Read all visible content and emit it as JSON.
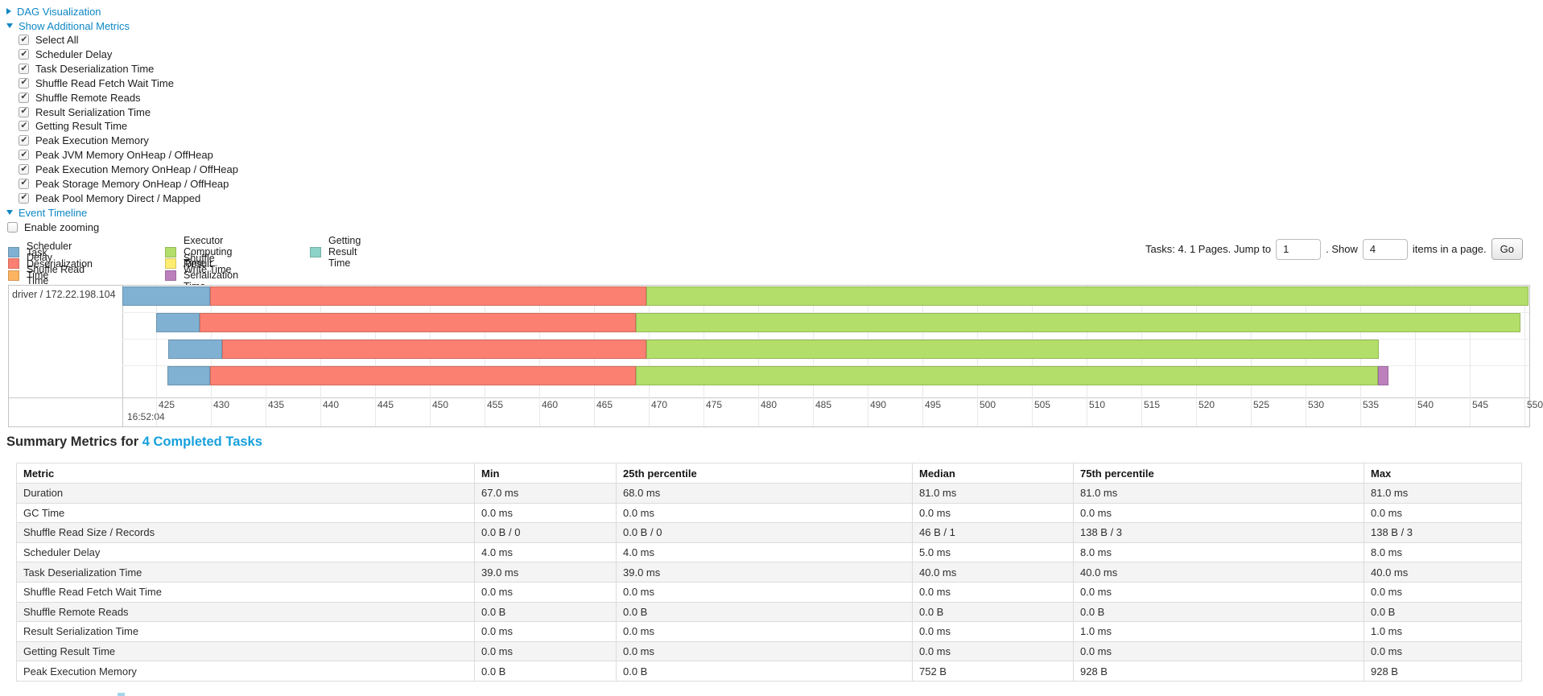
{
  "colors": {
    "link": "#0d87c4",
    "heading_link": "#16a0dc",
    "chart_border": "#c4c4c4",
    "grid_line": "#e9e9e9",
    "table_border": "#dcdcdc",
    "table_stripe": "#f4f4f4"
  },
  "toggles": {
    "dag": {
      "label": "DAG Visualization",
      "state": "collapsed"
    },
    "metrics": {
      "label": "Show Additional Metrics",
      "state": "expanded"
    },
    "timeline": {
      "label": "Event Timeline",
      "state": "expanded"
    }
  },
  "metric_checkboxes": [
    {
      "label": "Select All",
      "checked": true
    },
    {
      "label": "Scheduler Delay",
      "checked": true
    },
    {
      "label": "Task Deserialization Time",
      "checked": true
    },
    {
      "label": "Shuffle Read Fetch Wait Time",
      "checked": true
    },
    {
      "label": "Shuffle Remote Reads",
      "checked": true
    },
    {
      "label": "Result Serialization Time",
      "checked": true
    },
    {
      "label": "Getting Result Time",
      "checked": true
    },
    {
      "label": "Peak Execution Memory",
      "checked": true
    },
    {
      "label": "Peak JVM Memory OnHeap / OffHeap",
      "checked": true
    },
    {
      "label": "Peak Execution Memory OnHeap / OffHeap",
      "checked": true
    },
    {
      "label": "Peak Storage Memory OnHeap / OffHeap",
      "checked": true
    },
    {
      "label": "Peak Pool Memory Direct / Mapped",
      "checked": true
    }
  ],
  "enable_zooming": {
    "label": "Enable zooming",
    "checked": false
  },
  "legend": {
    "items": [
      {
        "label": "Scheduler Delay",
        "fill": "#80B1D3",
        "stroke": "#6B94B0",
        "col": 0,
        "row": 0
      },
      {
        "label": "Task Deserialization Time",
        "fill": "#FB8072",
        "stroke": "#D26B5F",
        "col": 0,
        "row": 1
      },
      {
        "label": "Shuffle Read Time",
        "fill": "#FDB462",
        "stroke": "#D39752",
        "col": 0,
        "row": 2
      },
      {
        "label": "Executor Computing Time",
        "fill": "#B3DE69",
        "stroke": "#95B957",
        "col": 1,
        "row": 0
      },
      {
        "label": "Shuffle Write Time",
        "fill": "#FFED6F",
        "stroke": "#D5C65C",
        "col": 1,
        "row": 1
      },
      {
        "label": "Result Serialization Time",
        "fill": "#BC80BD",
        "stroke": "#9D6B9E",
        "col": 1,
        "row": 2
      },
      {
        "label": "Getting Result Time",
        "fill": "#8DD3C7",
        "stroke": "#75B0A6",
        "col": 2,
        "row": 0
      }
    ]
  },
  "pagination": {
    "tasks_text": "Tasks: 4. 1 Pages. Jump to",
    "jump_value": "1",
    "show_label": ". Show",
    "show_value": "4",
    "items_label": "items in a page.",
    "go_label": "Go"
  },
  "timeline": {
    "group_label": "driver / 172.22.198.104",
    "axis": {
      "start": 425,
      "end": 550,
      "step": 5,
      "major_label": "16:52:04"
    },
    "segment_colors": {
      "scheduler": {
        "fill": "#80B1D3",
        "stroke": "#6B94B0"
      },
      "deserialization": {
        "fill": "#FB8072",
        "stroke": "#D26B5F"
      },
      "executor": {
        "fill": "#B3DE69",
        "stroke": "#95B957"
      },
      "serialization": {
        "fill": "#BC80BD",
        "stroke": "#9D6B9E"
      }
    },
    "tasks": [
      {
        "segments": [
          [
            "scheduler",
            421.9,
            429.9
          ],
          [
            "deserialization",
            429.9,
            469.8
          ],
          [
            "executor",
            469.8,
            550.4
          ]
        ]
      },
      {
        "segments": [
          [
            "scheduler",
            425.0,
            429.0
          ],
          [
            "deserialization",
            429.0,
            468.8
          ],
          [
            "executor",
            468.8,
            549.6
          ]
        ]
      },
      {
        "segments": [
          [
            "scheduler",
            426.1,
            431.0
          ],
          [
            "deserialization",
            431.0,
            469.8
          ],
          [
            "executor",
            469.8,
            536.7
          ]
        ]
      },
      {
        "segments": [
          [
            "scheduler",
            426.0,
            429.9
          ],
          [
            "deserialization",
            429.9,
            468.8
          ],
          [
            "executor",
            468.8,
            536.6
          ],
          [
            "serialization",
            536.6,
            537.6
          ]
        ]
      }
    ]
  },
  "summary": {
    "title": "Summary Metrics for ",
    "title_link": "4 Completed Tasks",
    "headers": [
      "Metric",
      "Min",
      "25th percentile",
      "Median",
      "75th percentile",
      "Max"
    ],
    "rows": [
      {
        "metric": "Duration",
        "values": [
          "67.0 ms",
          "68.0 ms",
          "81.0 ms",
          "81.0 ms",
          "81.0 ms"
        ]
      },
      {
        "metric": "GC Time",
        "values": [
          "0.0 ms",
          "0.0 ms",
          "0.0 ms",
          "0.0 ms",
          "0.0 ms"
        ]
      },
      {
        "metric": "Shuffle Read Size / Records",
        "values": [
          "0.0 B / 0",
          "0.0 B / 0",
          "46 B / 1",
          "138 B / 3",
          "138 B / 3"
        ]
      },
      {
        "metric": "Scheduler Delay",
        "values": [
          "4.0 ms",
          "4.0 ms",
          "5.0 ms",
          "8.0 ms",
          "8.0 ms"
        ]
      },
      {
        "metric": "Task Deserialization Time",
        "values": [
          "39.0 ms",
          "39.0 ms",
          "40.0 ms",
          "40.0 ms",
          "40.0 ms"
        ]
      },
      {
        "metric": "Shuffle Read Fetch Wait Time",
        "values": [
          "0.0 ms",
          "0.0 ms",
          "0.0 ms",
          "0.0 ms",
          "0.0 ms"
        ]
      },
      {
        "metric": "Shuffle Remote Reads",
        "values": [
          "0.0 B",
          "0.0 B",
          "0.0 B",
          "0.0 B",
          "0.0 B"
        ]
      },
      {
        "metric": "Result Serialization Time",
        "values": [
          "0.0 ms",
          "0.0 ms",
          "0.0 ms",
          "1.0 ms",
          "1.0 ms"
        ]
      },
      {
        "metric": "Getting Result Time",
        "values": [
          "0.0 ms",
          "0.0 ms",
          "0.0 ms",
          "0.0 ms",
          "0.0 ms"
        ]
      },
      {
        "metric": "Peak Execution Memory",
        "values": [
          "0.0 B",
          "0.0 B",
          "752 B",
          "928 B",
          "928 B"
        ]
      }
    ]
  }
}
